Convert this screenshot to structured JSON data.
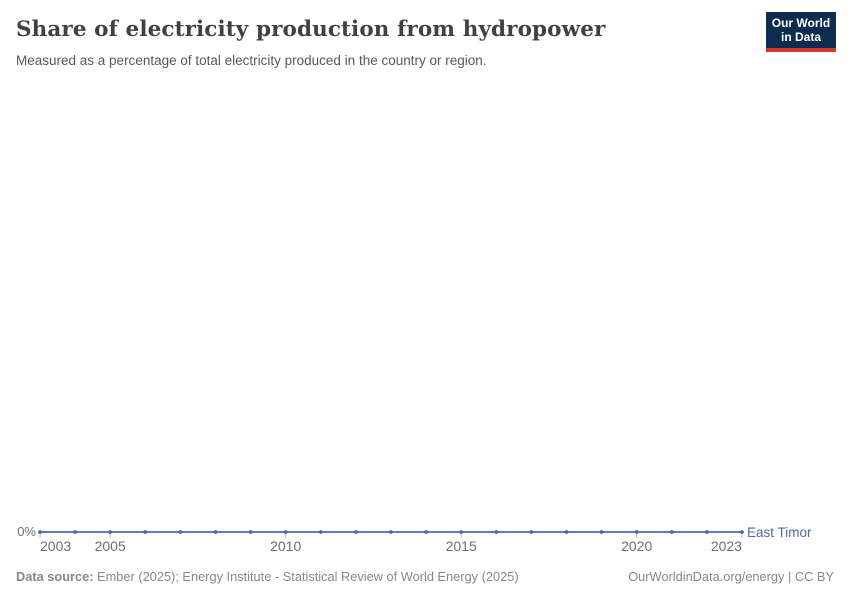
{
  "header": {
    "title": "Share of electricity production from hydropower",
    "subtitle": "Measured as a percentage of total electricity produced in the country or region.",
    "logo": {
      "line1": "Our World",
      "line2": "in Data"
    }
  },
  "chart_data": {
    "type": "line",
    "title": "Share of electricity production from hydropower",
    "xlabel": "",
    "ylabel": "",
    "x": [
      2003,
      2004,
      2005,
      2006,
      2007,
      2008,
      2009,
      2010,
      2011,
      2012,
      2013,
      2014,
      2015,
      2016,
      2017,
      2018,
      2019,
      2020,
      2021,
      2022,
      2023
    ],
    "series": [
      {
        "name": "East Timor",
        "values": [
          0,
          0,
          0,
          0,
          0,
          0,
          0,
          0,
          0,
          0,
          0,
          0,
          0,
          0,
          0,
          0,
          0,
          0,
          0,
          0,
          0
        ],
        "color": "#4a6ba8"
      }
    ],
    "x_ticks": [
      2003,
      2005,
      2010,
      2015,
      2020,
      2023
    ],
    "y_ticks": [
      {
        "value": 0,
        "label": "0%"
      }
    ],
    "ylim": [
      0,
      0
    ],
    "grid": false,
    "legend": "end-of-line-label"
  },
  "footer": {
    "source_prefix": "Data source:",
    "source_text": " Ember (2025); Energy Institute - Statistical Review of World Energy (2025)",
    "link_text": "OurWorldinData.org/energy | CC BY"
  },
  "colors": {
    "line": "#4a6ba8",
    "axis_tick": "#bbbbbb",
    "logo_bg": "#0d2c4f",
    "logo_accent": "#d8352a"
  }
}
